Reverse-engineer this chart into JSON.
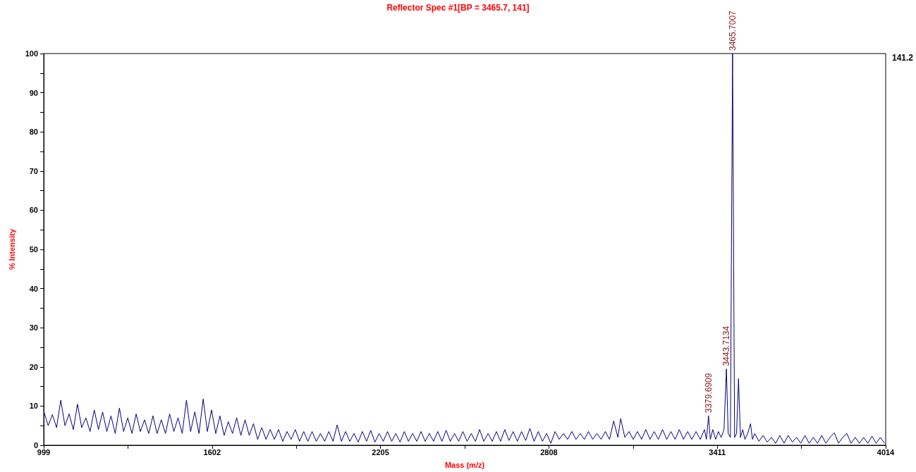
{
  "chart_data": {
    "type": "line",
    "title": "Reflector Spec #1[BP = 3465.7, 141]",
    "xlabel": "Mass (m/z)",
    "ylabel": "% Intensity",
    "xlim": [
      999,
      4014
    ],
    "xticks": [
      999,
      {
        "value": 1300.5,
        "label": null
      },
      1602,
      {
        "value": 1903.5,
        "label": null
      },
      2205,
      {
        "value": 2506.5,
        "label": null
      },
      2808,
      {
        "value": 3109.5,
        "label": null
      },
      3411,
      {
        "value": 3712.5,
        "label": null
      },
      4014
    ],
    "ylim": [
      0,
      100
    ],
    "yticks": [
      0,
      {
        "value": 5,
        "label": null
      },
      10,
      {
        "value": 15,
        "label": null
      },
      20,
      {
        "value": 25,
        "label": null
      },
      30,
      {
        "value": 35,
        "label": null
      },
      40,
      {
        "value": 45,
        "label": null
      },
      50,
      {
        "value": 55,
        "label": null
      },
      60,
      {
        "value": 65,
        "label": null
      },
      70,
      {
        "value": 75,
        "label": null
      },
      80,
      {
        "value": 85,
        "label": null
      },
      90,
      {
        "value": 95,
        "label": null
      },
      100
    ],
    "grid": false,
    "marker": "none",
    "line_style": "solid",
    "annotations": [
      {
        "text": "3465.7007",
        "x": 3465.7,
        "y": 100
      },
      {
        "text": "3443.7134",
        "x": 3443.7,
        "y": 19.5
      },
      {
        "text": "3379.6909",
        "x": 3379.7,
        "y": 7.5
      },
      "141.2"
    ],
    "series": [
      {
        "color": "#000080",
        "x": [
          1000,
          1015,
          1030,
          1045,
          1060,
          1075,
          1090,
          1105,
          1120,
          1135,
          1150,
          1165,
          1180,
          1195,
          1210,
          1225,
          1240,
          1255,
          1270,
          1285,
          1300,
          1315,
          1330,
          1345,
          1360,
          1375,
          1390,
          1405,
          1420,
          1435,
          1450,
          1465,
          1480,
          1495,
          1510,
          1525,
          1540,
          1555,
          1570,
          1585,
          1600,
          1615,
          1630,
          1645,
          1660,
          1675,
          1690,
          1705,
          1720,
          1735,
          1750,
          1765,
          1780,
          1795,
          1810,
          1825,
          1840,
          1855,
          1870,
          1885,
          1900,
          1915,
          1930,
          1945,
          1960,
          1975,
          1990,
          2005,
          2020,
          2035,
          2050,
          2065,
          2080,
          2095,
          2110,
          2125,
          2140,
          2155,
          2170,
          2185,
          2200,
          2215,
          2230,
          2245,
          2260,
          2275,
          2290,
          2305,
          2320,
          2335,
          2350,
          2365,
          2380,
          2395,
          2410,
          2425,
          2440,
          2455,
          2470,
          2485,
          2500,
          2515,
          2530,
          2545,
          2560,
          2575,
          2590,
          2605,
          2620,
          2635,
          2650,
          2665,
          2680,
          2695,
          2710,
          2725,
          2740,
          2755,
          2770,
          2785,
          2800,
          2815,
          2830,
          2845,
          2860,
          2875,
          2890,
          2905,
          2920,
          2935,
          2950,
          2965,
          2980,
          2995,
          3010,
          3025,
          3040,
          3055,
          3065,
          3080,
          3095,
          3110,
          3125,
          3140,
          3155,
          3170,
          3185,
          3200,
          3215,
          3230,
          3245,
          3260,
          3275,
          3290,
          3305,
          3320,
          3335,
          3350,
          3365,
          3372,
          3379.7,
          3386,
          3395,
          3405,
          3415,
          3425,
          3435,
          3443.7,
          3450,
          3458,
          3465.7,
          3473,
          3480,
          3487,
          3494,
          3502,
          3510,
          3520,
          3530,
          3537,
          3545,
          3560,
          3575,
          3590,
          3605,
          3620,
          3635,
          3650,
          3665,
          3680,
          3695,
          3710,
          3725,
          3740,
          3755,
          3770,
          3785,
          3800,
          3815,
          3830,
          3845,
          3860,
          3875,
          3890,
          3905,
          3920,
          3935,
          3950,
          3965,
          3980,
          3995,
          4010
        ],
        "values": [
          8.5,
          5,
          7.8,
          4.5,
          11.5,
          5,
          8,
          4,
          10.5,
          4.5,
          7,
          3.5,
          9,
          4,
          8.5,
          3.5,
          7.5,
          3,
          9.5,
          3.5,
          7,
          3,
          8,
          3.5,
          6.5,
          3,
          7.5,
          3,
          6.5,
          3,
          8,
          3.5,
          7,
          3,
          11.5,
          3.5,
          8.5,
          3,
          11.8,
          3.5,
          9,
          3,
          7.5,
          2.5,
          6,
          3,
          7,
          2.5,
          6.5,
          2.5,
          5.5,
          1.5,
          4.5,
          1.5,
          4,
          1.5,
          4,
          1,
          3.5,
          1.5,
          4,
          1,
          3.5,
          1,
          3.5,
          1,
          3,
          1,
          3.5,
          1,
          5.2,
          1,
          3.5,
          1,
          3,
          0.8,
          3.5,
          1,
          3.8,
          0.8,
          3,
          1,
          3.5,
          1,
          3,
          0.8,
          3.5,
          1,
          3,
          1,
          3.5,
          1,
          3,
          1,
          3.5,
          1,
          3.8,
          1,
          3,
          1,
          3.5,
          1,
          3,
          1,
          4,
          1,
          3,
          1,
          3.5,
          1,
          4,
          1.2,
          3.5,
          1,
          3.5,
          1.2,
          4.3,
          1,
          3.5,
          1,
          3,
          0.5,
          3.5,
          1.5,
          3,
          1.5,
          3.5,
          1.5,
          3,
          1.5,
          3.5,
          1.5,
          3,
          1.5,
          3.5,
          1.5,
          6.2,
          2,
          6.8,
          2,
          3.5,
          1.5,
          3.5,
          1.5,
          4,
          1.5,
          3.5,
          1.5,
          4,
          1.5,
          3.5,
          1.5,
          4,
          1.5,
          3.5,
          1.5,
          3.5,
          1.5,
          4,
          1.5,
          7.5,
          1.5,
          4,
          1.5,
          3.5,
          2,
          4,
          19.5,
          3,
          2,
          100,
          2,
          3,
          17,
          2,
          4,
          1.5,
          3,
          5.5,
          1.5,
          3,
          1,
          2.5,
          0.8,
          2,
          0.5,
          2.5,
          0.5,
          2.5,
          0.8,
          2,
          0.5,
          2.5,
          0.5,
          2,
          0.5,
          2.5,
          0.5,
          2,
          3.2,
          0.5,
          2,
          3,
          0.5,
          2,
          0.5,
          2,
          0.5,
          2.3,
          0.5,
          2,
          0.5
        ]
      }
    ]
  }
}
